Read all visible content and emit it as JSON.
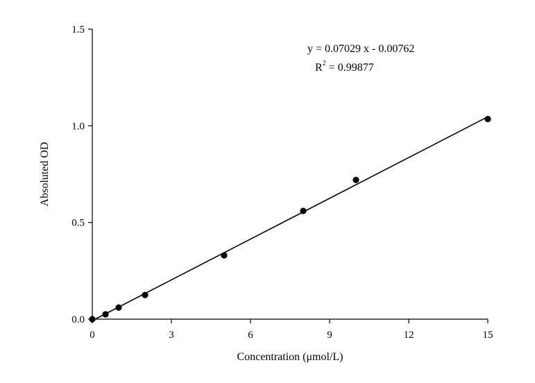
{
  "chart_data": {
    "type": "scatter",
    "title": "",
    "xlabel": "Concentration (μmol/L)",
    "ylabel": "Absoluted OD",
    "xlim": [
      0,
      15
    ],
    "ylim": [
      0,
      1.5
    ],
    "xticks": [
      0,
      3,
      6,
      9,
      12,
      15
    ],
    "yticks": [
      0.0,
      0.5,
      1.0,
      1.5
    ],
    "xtick_labels": [
      "0",
      "3",
      "6",
      "9",
      "12",
      "15"
    ],
    "ytick_labels": [
      "0.0",
      "0.5",
      "1.0",
      "1.5"
    ],
    "grid": false,
    "series": [
      {
        "x": [
          0,
          0.5,
          1,
          2,
          5,
          8,
          10,
          15
        ],
        "y": [
          0.0,
          0.025,
          0.06,
          0.125,
          0.33,
          0.56,
          0.72,
          1.035
        ]
      }
    ],
    "fit": {
      "slope": 0.07029,
      "intercept": -0.00762,
      "x_range": [
        0,
        15
      ]
    },
    "annotations": {
      "equation": "y = 0.07029 x - 0.00762",
      "r2_prefix": "R",
      "r2_sup": "2",
      "r2_value": " = 0.99877"
    }
  }
}
